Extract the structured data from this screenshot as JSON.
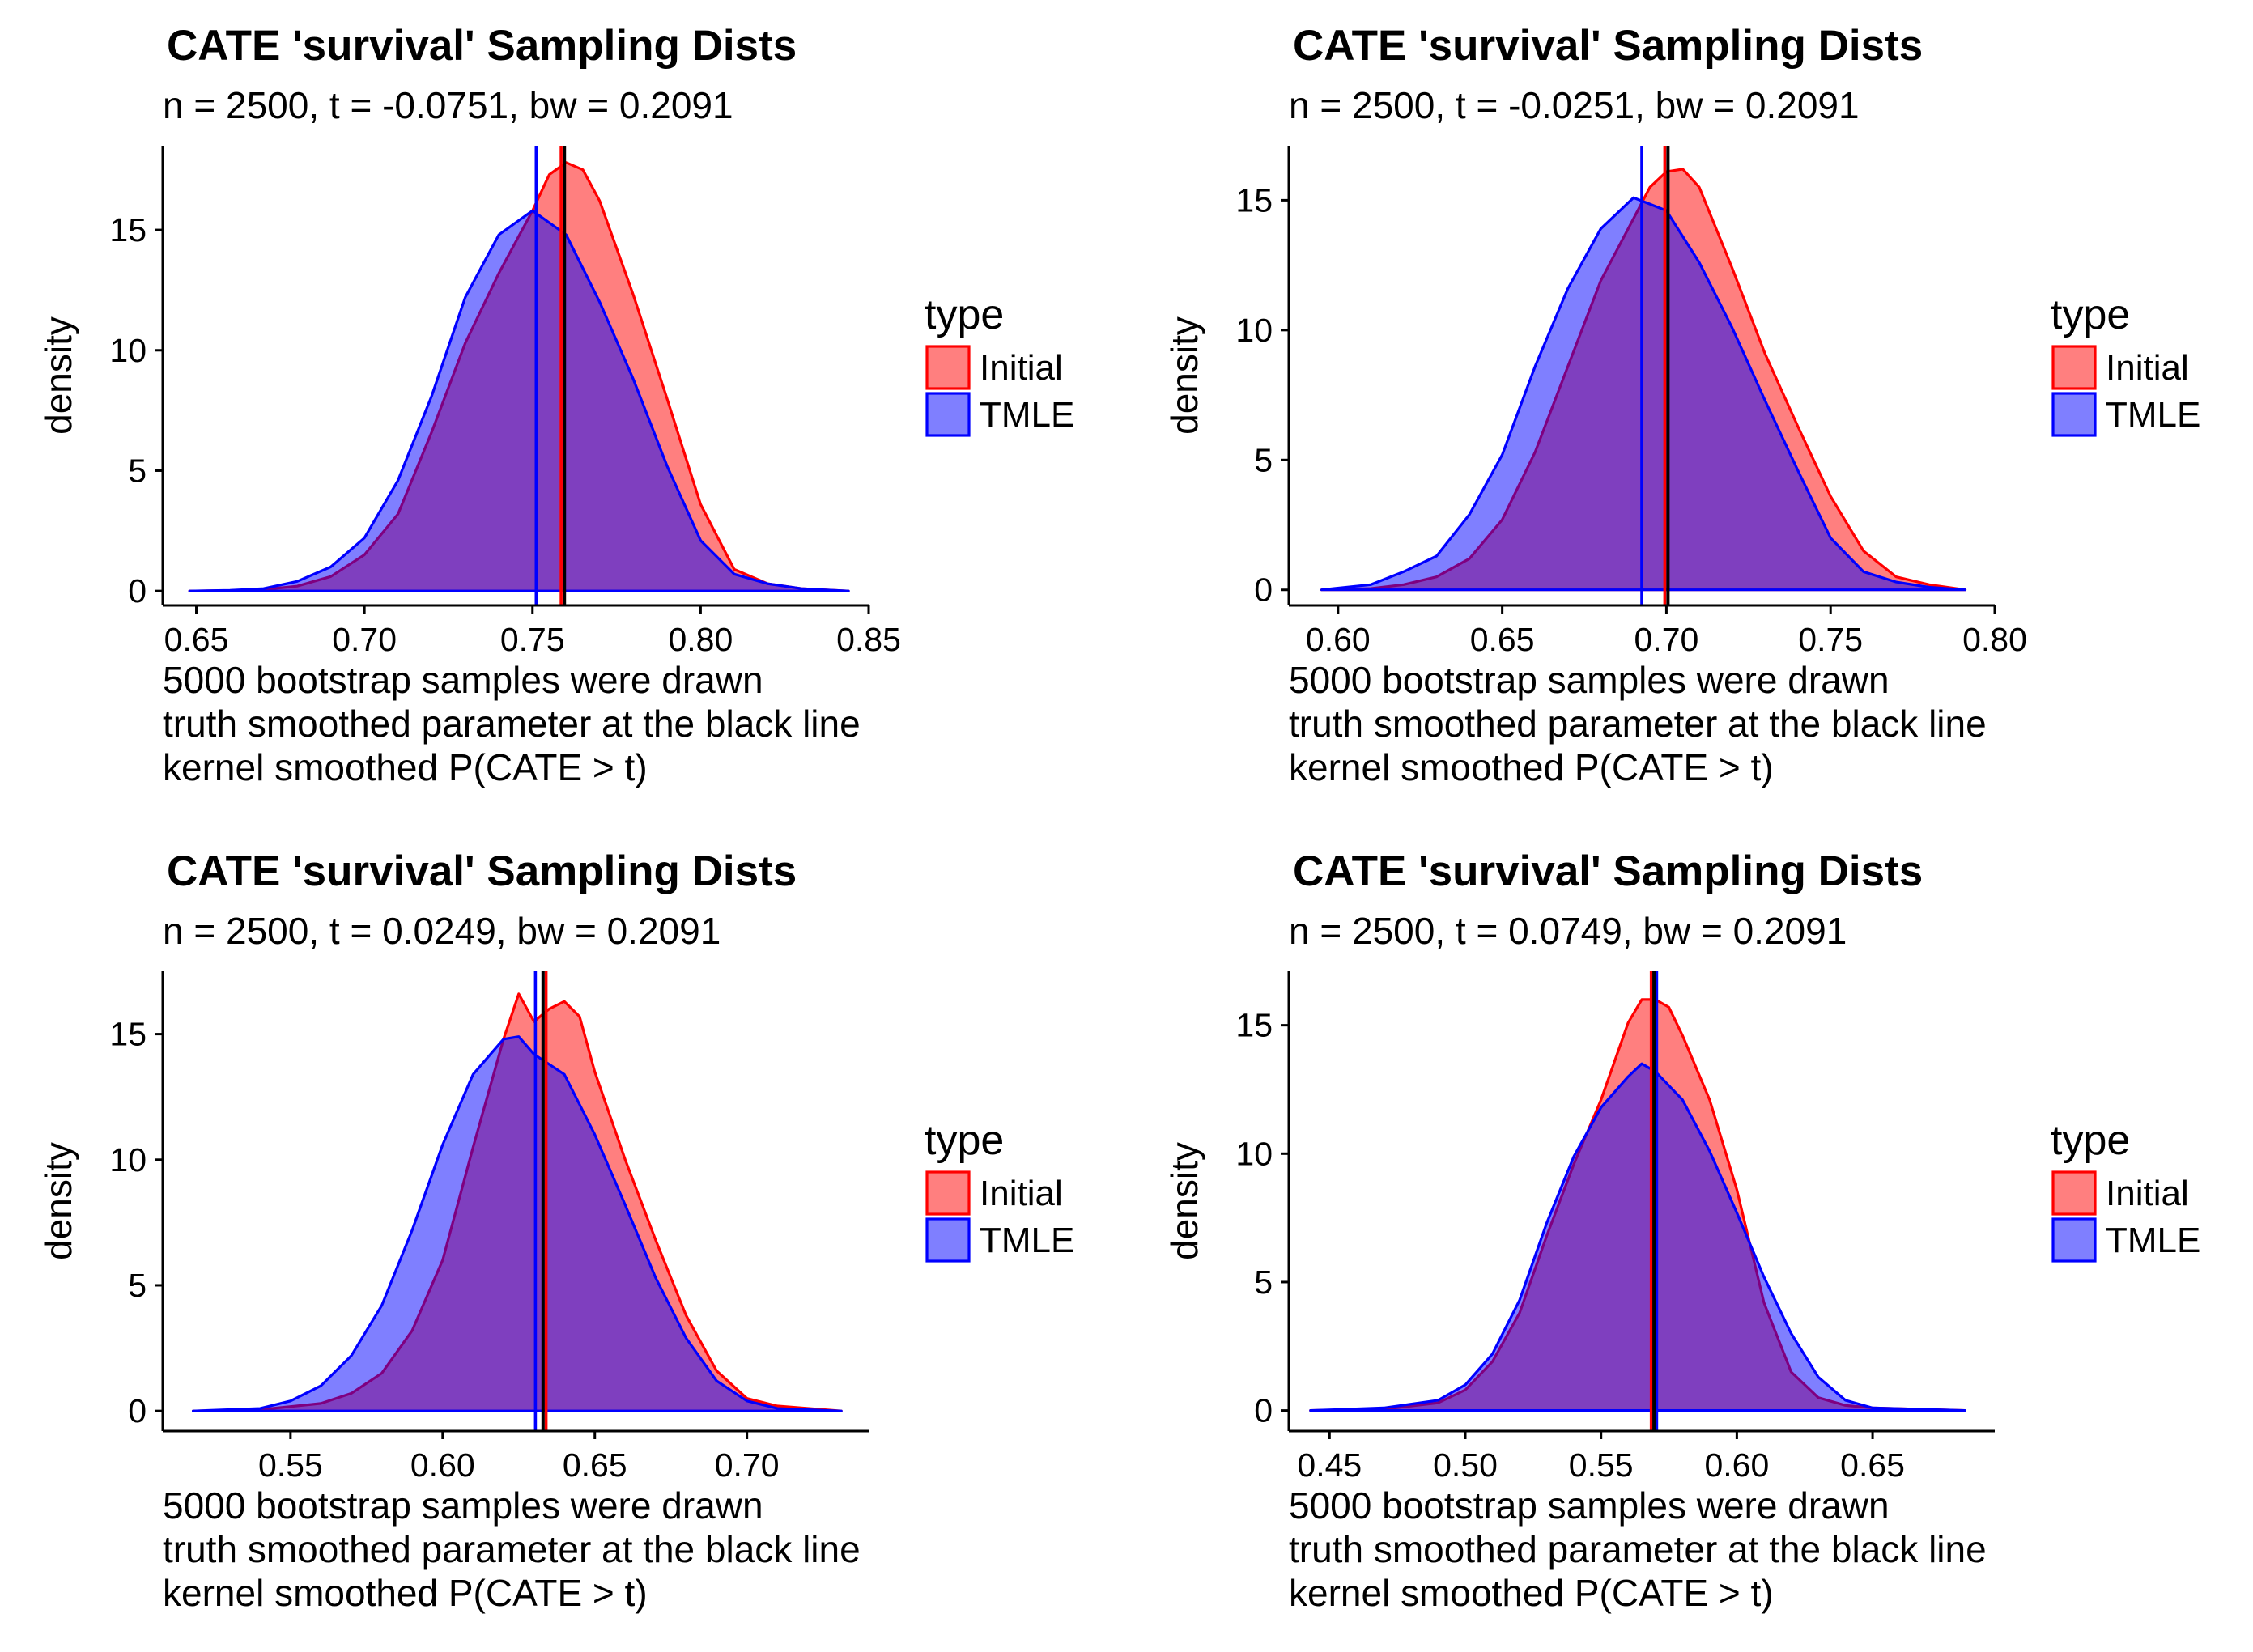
{
  "figure": {
    "background": "#ffffff",
    "colors": {
      "Initial": "#ff0000",
      "TMLE": "#0000ff",
      "truth": "#000000"
    }
  },
  "chart_data": [
    {
      "type": "area",
      "title": "CATE 'survival' Sampling Dists",
      "subtitle": "n = 2500, t = -0.0751, bw = 0.2091",
      "ylabel": "density",
      "caption": [
        "5000 bootstrap samples were drawn",
        "truth smoothed parameter at the black line",
        "kernel smoothed P(CATE > t)"
      ],
      "xlim": [
        0.64,
        0.85
      ],
      "ylim": [
        -0.6,
        18.5
      ],
      "xticks": [
        "0.65",
        "0.70",
        "0.75",
        "0.80",
        "0.85"
      ],
      "xtick_values": [
        0.65,
        0.7,
        0.75,
        0.8,
        0.85
      ],
      "yticks": [
        "0",
        "5",
        "10",
        "15"
      ],
      "ytick_values": [
        0,
        5,
        10,
        15
      ],
      "legend": {
        "title": "type",
        "entries": [
          "Initial",
          "TMLE"
        ],
        "position": "right"
      },
      "grid": false,
      "vlines": {
        "Initial": 0.7585,
        "TMLE": 0.7511,
        "truth": 0.7595
      },
      "series": [
        {
          "name": "Initial",
          "x": [
            0.648,
            0.66,
            0.67,
            0.68,
            0.69,
            0.7,
            0.71,
            0.72,
            0.73,
            0.74,
            0.75,
            0.755,
            0.76,
            0.765,
            0.77,
            0.78,
            0.79,
            0.8,
            0.81,
            0.82,
            0.83,
            0.844
          ],
          "y": [
            0,
            0.02,
            0.06,
            0.2,
            0.6,
            1.5,
            3.2,
            6.6,
            10.3,
            13.2,
            15.8,
            17.3,
            17.8,
            17.5,
            16.2,
            12.3,
            8.0,
            3.6,
            0.9,
            0.3,
            0.1,
            0
          ]
        },
        {
          "name": "TMLE",
          "x": [
            0.648,
            0.66,
            0.67,
            0.68,
            0.69,
            0.7,
            0.71,
            0.72,
            0.73,
            0.74,
            0.75,
            0.76,
            0.77,
            0.78,
            0.79,
            0.8,
            0.81,
            0.82,
            0.83,
            0.844
          ],
          "y": [
            0,
            0.03,
            0.1,
            0.4,
            1.0,
            2.2,
            4.6,
            8.1,
            12.2,
            14.8,
            15.8,
            14.8,
            12.0,
            8.8,
            5.2,
            2.1,
            0.7,
            0.3,
            0.1,
            0
          ]
        }
      ]
    },
    {
      "type": "area",
      "title": "CATE 'survival' Sampling Dists",
      "subtitle": "n = 2500, t = -0.0251, bw = 0.2091",
      "ylabel": "density",
      "caption": [
        "5000 bootstrap samples were drawn",
        "truth smoothed parameter at the black line",
        "kernel smoothed P(CATE > t)"
      ],
      "xlim": [
        0.585,
        0.8
      ],
      "ylim": [
        -0.6,
        17.1
      ],
      "xticks": [
        "0.60",
        "0.65",
        "0.70",
        "0.75",
        "0.80"
      ],
      "xtick_values": [
        0.6,
        0.65,
        0.7,
        0.75,
        0.8
      ],
      "yticks": [
        "0",
        "5",
        "10",
        "15"
      ],
      "ytick_values": [
        0,
        5,
        10,
        15
      ],
      "legend": {
        "title": "type",
        "entries": [
          "Initial",
          "TMLE"
        ],
        "position": "right"
      },
      "grid": false,
      "vlines": {
        "Initial": 0.6995,
        "TMLE": 0.6925,
        "truth": 0.7005
      },
      "series": [
        {
          "name": "Initial",
          "x": [
            0.595,
            0.61,
            0.62,
            0.63,
            0.64,
            0.65,
            0.66,
            0.67,
            0.68,
            0.69,
            0.695,
            0.7,
            0.705,
            0.71,
            0.72,
            0.73,
            0.74,
            0.75,
            0.76,
            0.77,
            0.78,
            0.791
          ],
          "y": [
            0,
            0.05,
            0.2,
            0.5,
            1.2,
            2.7,
            5.3,
            8.6,
            11.9,
            14.3,
            15.5,
            16.1,
            16.2,
            15.5,
            12.4,
            9.1,
            6.3,
            3.6,
            1.5,
            0.5,
            0.2,
            0
          ]
        },
        {
          "name": "TMLE",
          "x": [
            0.595,
            0.61,
            0.62,
            0.63,
            0.64,
            0.65,
            0.66,
            0.67,
            0.68,
            0.69,
            0.7,
            0.71,
            0.72,
            0.73,
            0.74,
            0.75,
            0.76,
            0.77,
            0.78,
            0.791
          ],
          "y": [
            0,
            0.2,
            0.7,
            1.3,
            2.9,
            5.2,
            8.6,
            11.6,
            13.9,
            15.1,
            14.6,
            12.6,
            10.1,
            7.3,
            4.6,
            2.0,
            0.7,
            0.3,
            0.1,
            0
          ]
        }
      ]
    },
    {
      "type": "area",
      "title": "CATE 'survival' Sampling Dists",
      "subtitle": "n = 2500, t = 0.0249, bw = 0.2091",
      "ylabel": "density",
      "caption": [
        "5000 bootstrap samples were drawn",
        "truth smoothed parameter at the black line",
        "kernel smoothed P(CATE > t)"
      ],
      "xlim": [
        0.508,
        0.74
      ],
      "ylim": [
        -0.8,
        17.5
      ],
      "xticks": [
        "0.55",
        "0.60",
        "0.65",
        "0.70"
      ],
      "xtick_values": [
        0.55,
        0.6,
        0.65,
        0.7
      ],
      "yticks": [
        "0",
        "5",
        "10",
        "15"
      ],
      "ytick_values": [
        0,
        5,
        10,
        15
      ],
      "legend": {
        "title": "type",
        "entries": [
          "Initial",
          "TMLE"
        ],
        "position": "right"
      },
      "grid": false,
      "vlines": {
        "Initial": 0.634,
        "TMLE": 0.6305,
        "truth": 0.633
      },
      "series": [
        {
          "name": "Initial",
          "x": [
            0.518,
            0.54,
            0.56,
            0.57,
            0.58,
            0.59,
            0.6,
            0.61,
            0.62,
            0.625,
            0.63,
            0.635,
            0.64,
            0.645,
            0.65,
            0.66,
            0.67,
            0.68,
            0.69,
            0.7,
            0.71,
            0.731
          ],
          "y": [
            0,
            0.05,
            0.3,
            0.7,
            1.5,
            3.2,
            6.0,
            10.5,
            14.8,
            16.6,
            15.5,
            16.0,
            16.3,
            15.7,
            13.5,
            10.0,
            6.8,
            3.8,
            1.6,
            0.5,
            0.2,
            0
          ]
        },
        {
          "name": "TMLE",
          "x": [
            0.518,
            0.54,
            0.55,
            0.56,
            0.57,
            0.58,
            0.59,
            0.6,
            0.61,
            0.62,
            0.625,
            0.63,
            0.64,
            0.65,
            0.66,
            0.67,
            0.68,
            0.69,
            0.7,
            0.71,
            0.731
          ],
          "y": [
            0,
            0.1,
            0.4,
            1.0,
            2.2,
            4.2,
            7.2,
            10.6,
            13.4,
            14.8,
            14.9,
            14.2,
            13.4,
            11.0,
            8.2,
            5.3,
            2.9,
            1.2,
            0.4,
            0.1,
            0
          ]
        }
      ]
    },
    {
      "type": "area",
      "title": "CATE 'survival' Sampling Dists",
      "subtitle": "n = 2500, t = 0.0749, bw = 0.2091",
      "ylabel": "density",
      "caption": [
        "5000 bootstrap samples were drawn",
        "truth smoothed parameter at the black line",
        "kernel smoothed P(CATE > t)"
      ],
      "xlim": [
        0.435,
        0.695
      ],
      "ylim": [
        -0.8,
        17.1
      ],
      "xticks": [
        "0.45",
        "0.50",
        "0.55",
        "0.60",
        "0.65"
      ],
      "xtick_values": [
        0.45,
        0.5,
        0.55,
        0.6,
        0.65
      ],
      "yticks": [
        "0",
        "5",
        "10",
        "15"
      ],
      "ytick_values": [
        0,
        5,
        10,
        15
      ],
      "legend": {
        "title": "type",
        "entries": [
          "Initial",
          "TMLE"
        ],
        "position": "right"
      },
      "grid": false,
      "vlines": {
        "Initial": 0.5685,
        "TMLE": 0.5705,
        "truth": 0.5695
      },
      "series": [
        {
          "name": "Initial",
          "x": [
            0.443,
            0.47,
            0.49,
            0.5,
            0.51,
            0.52,
            0.53,
            0.54,
            0.55,
            0.56,
            0.565,
            0.57,
            0.575,
            0.58,
            0.59,
            0.6,
            0.61,
            0.62,
            0.63,
            0.64,
            0.65,
            0.684
          ],
          "y": [
            0,
            0.05,
            0.3,
            0.8,
            1.9,
            3.8,
            6.8,
            9.6,
            12.1,
            15.1,
            16.0,
            16.0,
            15.7,
            14.6,
            12.1,
            8.6,
            4.2,
            1.5,
            0.5,
            0.2,
            0.1,
            0
          ]
        },
        {
          "name": "TMLE",
          "x": [
            0.443,
            0.47,
            0.49,
            0.5,
            0.51,
            0.52,
            0.53,
            0.54,
            0.55,
            0.56,
            0.565,
            0.57,
            0.58,
            0.59,
            0.6,
            0.61,
            0.62,
            0.63,
            0.64,
            0.65,
            0.684
          ],
          "y": [
            0,
            0.1,
            0.4,
            1.0,
            2.2,
            4.3,
            7.3,
            9.9,
            11.8,
            13.0,
            13.5,
            13.2,
            12.1,
            10.1,
            7.7,
            5.2,
            3.0,
            1.3,
            0.4,
            0.1,
            0
          ]
        }
      ]
    }
  ]
}
